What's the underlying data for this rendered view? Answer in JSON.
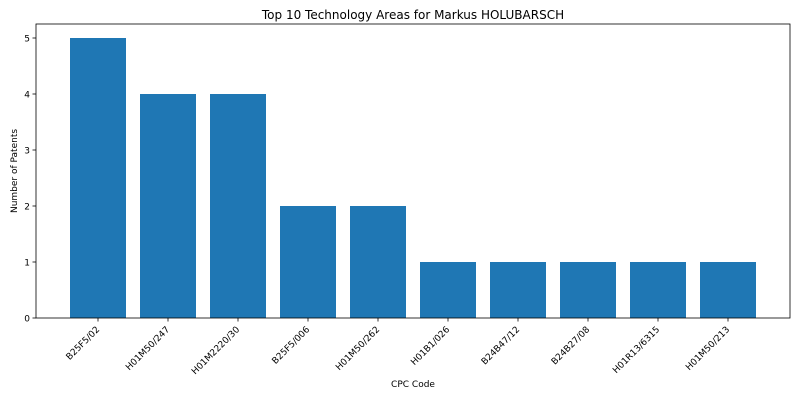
{
  "chart_data": {
    "type": "bar",
    "title": "Top 10 Technology Areas for Markus HOLUBARSCH",
    "xlabel": "CPC Code",
    "ylabel": "Number of Patents",
    "categories": [
      "B25F5/02",
      "H01M50/247",
      "H01M2220/30",
      "B25F5/006",
      "H01M50/262",
      "H01B1/026",
      "B24B47/12",
      "B24B27/08",
      "H01R13/6315",
      "H01M50/213"
    ],
    "values": [
      5,
      4,
      4,
      2,
      2,
      1,
      1,
      1,
      1,
      1
    ],
    "ylim": [
      0,
      5.25
    ],
    "yticks": [
      "0",
      "1",
      "2",
      "3",
      "4",
      "5"
    ],
    "grid": false,
    "bar_color": "#1f77b4"
  }
}
